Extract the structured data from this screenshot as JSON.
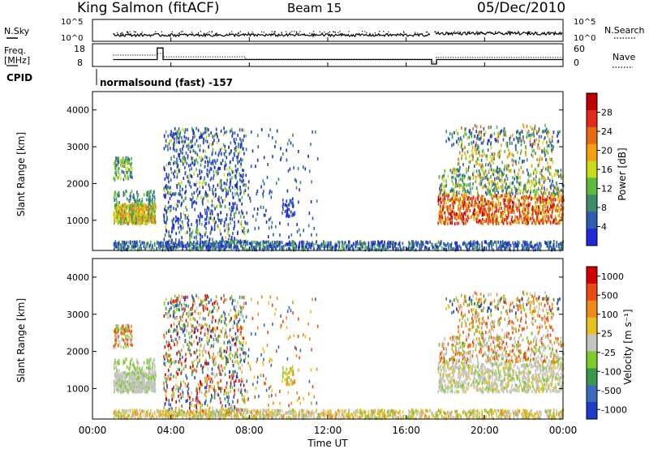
{
  "header": {
    "station": "King Salmon (fitACF)",
    "beam": "Beam 15",
    "date": "05/Dec/2010"
  },
  "colors": {
    "power_scale": [
      "#1f2bd6",
      "#2f5bb0",
      "#3c8c6a",
      "#5cbc3a",
      "#c8dc1a",
      "#f3a010",
      "#ea6a14",
      "#e02a1a",
      "#c00000"
    ],
    "velocity_scale": [
      "#1e3cc8",
      "#3a6ab8",
      "#3a9a4a",
      "#7ccc2a",
      "#c4c4c0",
      "#e8c020",
      "#f08a1a",
      "#ea4a14",
      "#d00000"
    ],
    "ground_scatter": "#c4c4c0"
  },
  "top_panels": {
    "nsky_label": "N.Sky",
    "nsky_ticks": [
      "10^5",
      "10^0"
    ],
    "nsearch_label": "N.Search",
    "nsearch_ticks": [
      "10^5",
      "10^0"
    ],
    "freq_label": "Freq.",
    "freq_unit": "[MHz]",
    "freq_ticks": [
      "18",
      "8"
    ],
    "nave_label": "Nave",
    "nave_ticks": [
      "60",
      "0"
    ],
    "cpid_label": "CPID",
    "cpid_text": "normalsound (fast) -157"
  },
  "chart_data": [
    {
      "type": "heatmap",
      "name": "power",
      "ylabel": "Slant Range [km]",
      "yticks": [
        1000,
        2000,
        3000,
        4000
      ],
      "ylim": [
        180,
        4500
      ],
      "xlabel": "Time UT",
      "xticks": [
        "00:00",
        "04:00",
        "08:00",
        "12:00",
        "16:00",
        "20:00",
        "00:00"
      ],
      "xlim_hours": [
        0,
        24
      ],
      "colorbar": {
        "label": "Power [dB]",
        "tick_labels": [
          "4",
          "8",
          "12",
          "16",
          "20",
          "24",
          "28"
        ]
      }
    },
    {
      "type": "heatmap",
      "name": "velocity",
      "ylabel": "Slant Range [km]",
      "yticks": [
        1000,
        2000,
        3000,
        4000
      ],
      "ylim": [
        180,
        4500
      ],
      "xlabel": "Time UT",
      "xticks": [
        "00:00",
        "04:00",
        "08:00",
        "12:00",
        "16:00",
        "20:00",
        "00:00"
      ],
      "xlim_hours": [
        0,
        24
      ],
      "colorbar": {
        "label": "Velocity [m s⁻¹]",
        "tick_labels": [
          "1000",
          "500",
          "100",
          "25",
          "-25",
          "-100",
          "-500",
          "-1000"
        ]
      }
    }
  ],
  "top_series": {
    "freq": {
      "ylim": [
        8,
        18
      ],
      "steps": [
        [
          1.05,
          10.5
        ],
        [
          3.3,
          10.5
        ],
        [
          3.3,
          17.0
        ],
        [
          3.6,
          17.0
        ],
        [
          3.6,
          10.5
        ],
        [
          17.3,
          10.5
        ],
        [
          17.3,
          8.0
        ],
        [
          17.55,
          8.0
        ],
        [
          17.55,
          10.5
        ],
        [
          24,
          10.5
        ]
      ]
    },
    "nave": {
      "ylim": [
        0,
        60
      ],
      "steps": [
        [
          1.05,
          30
        ],
        [
          3.3,
          30
        ],
        [
          3.3,
          36
        ],
        [
          3.6,
          36
        ],
        [
          3.6,
          24
        ],
        [
          7.8,
          24
        ],
        [
          7.8,
          16
        ],
        [
          17.3,
          16
        ],
        [
          17.3,
          6
        ],
        [
          17.55,
          6
        ],
        [
          17.55,
          22
        ],
        [
          24,
          22
        ]
      ]
    },
    "time_gaps_hours": [
      [
        17.25,
        17.55
      ]
    ]
  }
}
